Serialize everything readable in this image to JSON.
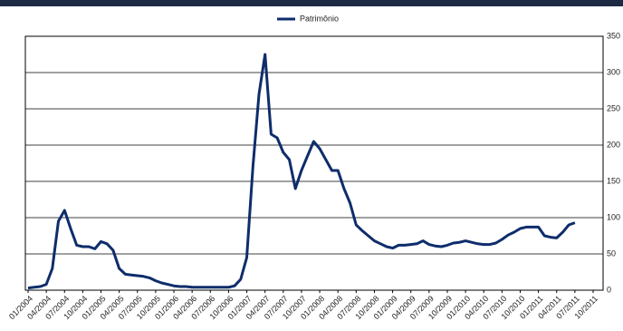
{
  "chart_data": {
    "type": "line",
    "legend_position": "top",
    "grid": true,
    "y_axis_side": "right",
    "series": [
      {
        "name": "Patrimônio",
        "color": "#0e2d6b",
        "values": [
          3,
          4,
          5,
          8,
          30,
          95,
          110,
          85,
          62,
          60,
          60,
          57,
          67,
          64,
          55,
          30,
          22,
          21,
          20,
          19,
          17,
          13,
          10,
          8,
          6,
          5,
          5,
          4,
          4,
          4,
          4,
          4,
          4,
          4,
          6,
          15,
          45,
          170,
          270,
          325,
          215,
          210,
          190,
          180,
          140,
          165,
          185,
          205,
          195,
          180,
          165,
          165,
          140,
          120,
          90,
          82,
          75,
          68,
          64,
          60,
          58,
          62,
          62,
          63,
          64,
          68,
          63,
          61,
          60,
          62,
          65,
          66,
          68,
          66,
          64,
          63,
          63,
          65,
          70,
          76,
          80,
          85,
          87,
          87,
          87,
          75,
          73,
          72,
          80,
          90,
          93
        ]
      }
    ],
    "x": [
      "01/2004",
      "02/2004",
      "03/2004",
      "04/2004",
      "05/2004",
      "06/2004",
      "07/2004",
      "08/2004",
      "09/2004",
      "10/2004",
      "11/2004",
      "12/2004",
      "01/2005",
      "02/2005",
      "03/2005",
      "04/2005",
      "05/2005",
      "06/2005",
      "07/2005",
      "08/2005",
      "09/2005",
      "10/2005",
      "11/2005",
      "12/2005",
      "01/2006",
      "02/2006",
      "03/2006",
      "04/2006",
      "05/2006",
      "06/2006",
      "07/2006",
      "08/2006",
      "09/2006",
      "10/2006",
      "11/2006",
      "12/2006",
      "01/2007",
      "02/2007",
      "03/2007",
      "04/2007",
      "05/2007",
      "06/2007",
      "07/2007",
      "08/2007",
      "09/2007",
      "10/2007",
      "11/2007",
      "12/2007",
      "01/2008",
      "02/2008",
      "03/2008",
      "04/2008",
      "05/2008",
      "06/2008",
      "07/2008",
      "08/2008",
      "09/2008",
      "10/2008",
      "11/2008",
      "12/2008",
      "01/2009",
      "02/2009",
      "03/2009",
      "04/2009",
      "05/2009",
      "06/2009",
      "07/2009",
      "08/2009",
      "09/2009",
      "10/2009",
      "11/2009",
      "12/2009",
      "01/2010",
      "02/2010",
      "03/2010",
      "04/2010",
      "05/2010",
      "06/2010",
      "07/2010",
      "08/2010",
      "09/2010",
      "10/2010",
      "11/2010",
      "12/2010",
      "01/2011",
      "02/2011",
      "03/2011",
      "04/2011",
      "05/2011",
      "06/2011",
      "07/2011"
    ],
    "xlim": [
      "01/2004",
      "10/2011"
    ],
    "xticks": [
      "01/2004",
      "04/2004",
      "07/2004",
      "10/2004",
      "01/2005",
      "04/2005",
      "07/2005",
      "10/2005",
      "01/2006",
      "04/2006",
      "07/2006",
      "10/2006",
      "01/2007",
      "04/2007",
      "07/2007",
      "10/2007",
      "01/2008",
      "04/2008",
      "07/2008",
      "10/2008",
      "01/2009",
      "04/2009",
      "07/2009",
      "10/2009",
      "01/2010",
      "04/2010",
      "07/2010",
      "10/2010",
      "01/2011",
      "04/2011",
      "07/2011",
      "10/2011"
    ],
    "ylim": [
      0,
      350
    ],
    "yticks": [
      0,
      50,
      100,
      150,
      200,
      250,
      300,
      350
    ]
  }
}
